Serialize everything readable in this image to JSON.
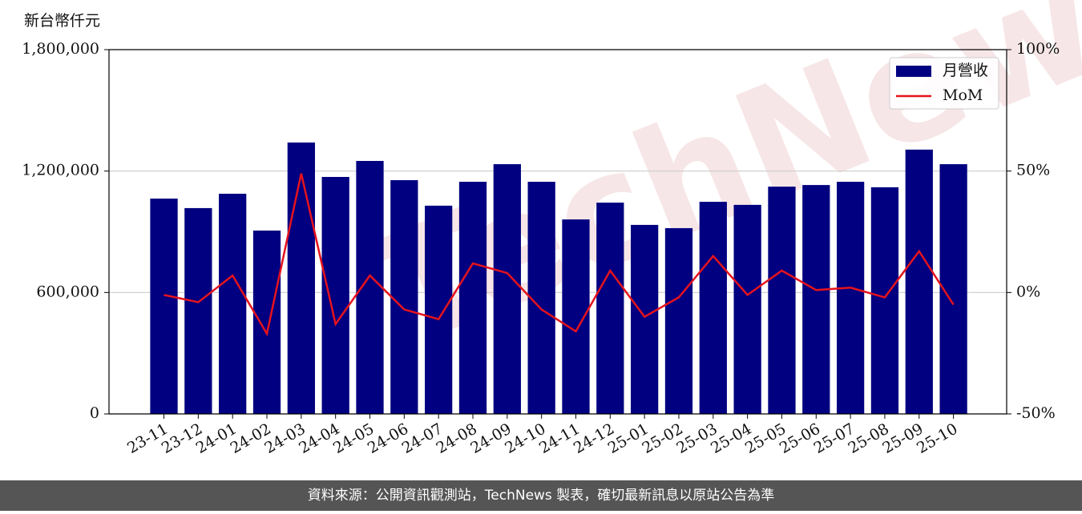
{
  "chart_data": {
    "type": "combo",
    "watermark": "TechNews",
    "y_label": "新台幣仟元",
    "categories": [
      "23-11",
      "23-12",
      "24-01",
      "24-02",
      "24-03",
      "24-04",
      "24-05",
      "24-06",
      "24-07",
      "24-08",
      "24-09",
      "24-10",
      "24-11",
      "24-12",
      "25-01",
      "25-02",
      "25-03",
      "25-04",
      "25-05",
      "25-06",
      "25-07",
      "25-08",
      "25-09",
      "25-10"
    ],
    "series": [
      {
        "name": "月營收",
        "type": "bar",
        "axis": "y",
        "color": "#000080",
        "values": [
          1064000,
          1017000,
          1088000,
          906000,
          1341000,
          1171000,
          1250000,
          1155000,
          1029000,
          1147000,
          1234000,
          1147000,
          961000,
          1044000,
          934000,
          918000,
          1048000,
          1033000,
          1123000,
          1131000,
          1147000,
          1120000,
          1306000,
          1234000
        ]
      },
      {
        "name": "MoM",
        "type": "line",
        "axis": "y2",
        "color": "#e5131d",
        "values": [
          -1,
          -4,
          7,
          -17,
          49,
          -13,
          7,
          -7,
          -11,
          12,
          8,
          -7,
          -16,
          9,
          -10,
          -2,
          15,
          -1,
          9,
          1,
          2,
          -2,
          17,
          -5
        ]
      }
    ],
    "ylim": [
      0,
      1800000
    ],
    "yticks": [
      0,
      {
        "value": 600000,
        "label": "600,000"
      },
      {
        "value": 1200000,
        "label": "1,200,000"
      },
      {
        "value": 1800000,
        "label": "1,800,000"
      }
    ],
    "y2lim": [
      -50,
      100
    ],
    "y2ticks": [
      {
        "value": -50,
        "label": "-50%"
      },
      {
        "value": 0,
        "label": "0%"
      },
      {
        "value": 50,
        "label": "50%"
      },
      {
        "value": 100,
        "label": "100%"
      }
    ],
    "grid": true,
    "legend": "upper right"
  },
  "footer": {
    "text": "資料來源：公開資訊觀測站，TechNews 製表，確切最新訊息以原站公告為準"
  }
}
